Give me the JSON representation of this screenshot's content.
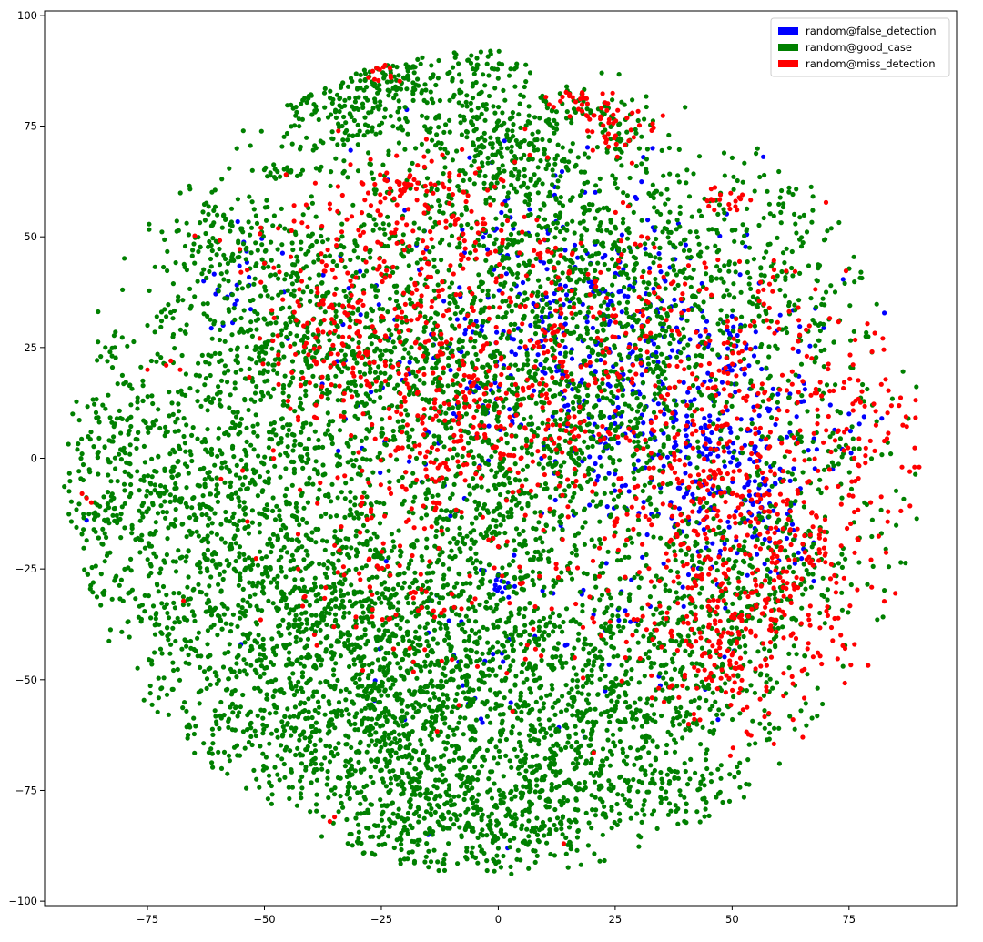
{
  "chart_data": {
    "type": "scatter",
    "title": "",
    "xlabel": "",
    "ylabel": "",
    "xlim": [
      -97,
      98
    ],
    "ylim": [
      -101,
      101
    ],
    "xticks": [
      -75,
      -50,
      -25,
      0,
      25,
      50,
      75
    ],
    "yticks": [
      -100,
      -75,
      -50,
      -25,
      0,
      25,
      50,
      75,
      100
    ],
    "grid": false,
    "legend": "top-right",
    "series": [
      {
        "name": "random@false_detection",
        "color": "#0000ff",
        "clusters": [
          [
            45,
            0,
            10,
            10,
            150
          ],
          [
            30,
            15,
            14,
            12,
            110
          ],
          [
            10,
            35,
            18,
            14,
            110
          ],
          [
            55,
            -15,
            10,
            8,
            60
          ],
          [
            0,
            -29,
            2,
            2,
            14
          ],
          [
            20,
            30,
            28,
            22,
            140
          ],
          [
            -55,
            40,
            5,
            5,
            18
          ],
          [
            5,
            15,
            24,
            15,
            80
          ],
          [
            65,
            5,
            6,
            6,
            30
          ],
          [
            40,
            30,
            15,
            10,
            70
          ],
          [
            -5,
            -40,
            15,
            12,
            30
          ],
          [
            30,
            -35,
            12,
            10,
            30
          ]
        ],
        "points": [
          [
            -63,
            40
          ],
          [
            -60,
            38
          ],
          [
            -57,
            37
          ],
          [
            -45,
            27
          ],
          [
            -88,
            -14
          ],
          [
            -55,
            -42
          ],
          [
            -20,
            -59
          ],
          [
            -15,
            -85
          ],
          [
            2,
            -88
          ],
          [
            47,
            -59
          ],
          [
            55,
            25
          ],
          [
            75,
            10
          ],
          [
            82,
            9
          ],
          [
            -30,
            12
          ],
          [
            -20,
            56
          ],
          [
            31,
            68
          ],
          [
            33,
            70
          ]
        ]
      },
      {
        "name": "random@good_case",
        "color": "#008000",
        "clusters": [
          [
            -60,
            -20,
            18,
            26,
            1100
          ],
          [
            -30,
            -40,
            16,
            14,
            550
          ],
          [
            0,
            -50,
            18,
            14,
            600
          ],
          [
            5,
            -80,
            12,
            7,
            320
          ],
          [
            -20,
            -80,
            10,
            7,
            220
          ],
          [
            25,
            -60,
            16,
            12,
            350
          ],
          [
            45,
            -45,
            12,
            10,
            200
          ],
          [
            -40,
            30,
            16,
            14,
            450
          ],
          [
            -10,
            20,
            20,
            18,
            700
          ],
          [
            10,
            0,
            20,
            14,
            500
          ],
          [
            0,
            60,
            22,
            10,
            300
          ],
          [
            -35,
            80,
            8,
            6,
            150
          ],
          [
            -22,
            85,
            5,
            4,
            80
          ],
          [
            -3,
            87,
            5,
            4,
            70
          ],
          [
            -5,
            75,
            8,
            5,
            100
          ],
          [
            5,
            68,
            8,
            5,
            90
          ],
          [
            15,
            80,
            5,
            2,
            25
          ],
          [
            27,
            75,
            4,
            4,
            40
          ],
          [
            45,
            50,
            16,
            10,
            200
          ],
          [
            60,
            35,
            10,
            10,
            100
          ],
          [
            70,
            5,
            10,
            10,
            100
          ],
          [
            60,
            -20,
            12,
            10,
            150
          ],
          [
            30,
            20,
            16,
            16,
            300
          ],
          [
            -80,
            0,
            6,
            12,
            120
          ],
          [
            -85,
            -12,
            3,
            3,
            25
          ],
          [
            35,
            -75,
            10,
            6,
            100
          ],
          [
            -48,
            65,
            3,
            1,
            15
          ],
          [
            -10,
            -25,
            22,
            10,
            300
          ],
          [
            -60,
            50,
            8,
            6,
            100
          ],
          [
            -40,
            -65,
            12,
            8,
            200
          ],
          [
            15,
            40,
            16,
            14,
            250
          ],
          [
            -20,
            -60,
            12,
            10,
            200
          ],
          [
            50,
            -30,
            12,
            8,
            120
          ]
        ],
        "points": [
          [
            58,
            -62
          ],
          [
            59,
            -61
          ],
          [
            60,
            -61
          ],
          [
            58,
            -60
          ],
          [
            57,
            -61
          ],
          [
            -72,
            33
          ],
          [
            -71,
            32
          ],
          [
            -72,
            31
          ],
          [
            -73,
            32
          ],
          [
            -83,
            24
          ],
          [
            -84,
            25
          ],
          [
            -82,
            25
          ],
          [
            -85,
            23
          ],
          [
            -90,
            2
          ],
          [
            -89,
            1
          ],
          [
            -91,
            10
          ],
          [
            -75,
            30
          ],
          [
            80,
            12
          ]
        ]
      },
      {
        "name": "random@miss_detection",
        "color": "#ff0000",
        "clusters": [
          [
            55,
            -25,
            14,
            14,
            330
          ],
          [
            45,
            -5,
            12,
            12,
            170
          ],
          [
            -5,
            20,
            20,
            18,
            320
          ],
          [
            -35,
            30,
            8,
            8,
            100
          ],
          [
            25,
            30,
            22,
            14,
            150
          ],
          [
            60,
            20,
            15,
            14,
            120
          ],
          [
            -20,
            50,
            18,
            10,
            150
          ],
          [
            5,
            -35,
            25,
            10,
            100
          ],
          [
            -25,
            -25,
            15,
            12,
            60
          ],
          [
            25,
            75,
            5,
            3,
            50
          ],
          [
            15,
            81,
            4,
            1,
            18
          ],
          [
            -20,
            62,
            4,
            2,
            30
          ],
          [
            -25,
            88,
            2,
            2,
            12
          ],
          [
            50,
            58,
            3,
            2,
            20
          ],
          [
            -5,
            5,
            15,
            10,
            150
          ],
          [
            50,
            -45,
            8,
            8,
            80
          ],
          [
            75,
            5,
            8,
            8,
            50
          ]
        ],
        "points": [
          [
            89,
            -2
          ],
          [
            90,
            -2
          ],
          [
            88,
            -3
          ],
          [
            -36,
            -82
          ],
          [
            -35,
            -81
          ],
          [
            14,
            -87
          ],
          [
            -88,
            -9
          ],
          [
            -87,
            -10
          ],
          [
            -89,
            -8
          ],
          [
            -70,
            22
          ],
          [
            -71,
            21
          ],
          [
            -68,
            20
          ],
          [
            -50,
            44
          ],
          [
            -48,
            43
          ],
          [
            -55,
            42
          ],
          [
            63,
            -59
          ],
          [
            -75,
            20
          ]
        ]
      }
    ]
  }
}
